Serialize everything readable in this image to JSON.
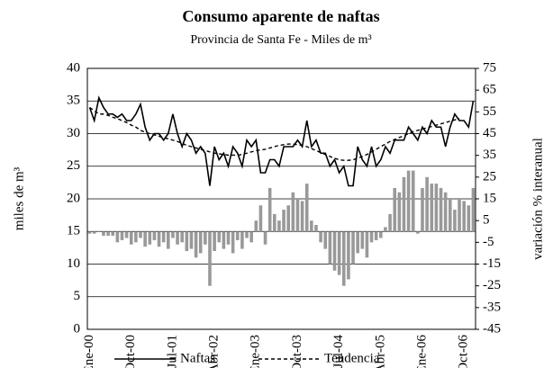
{
  "chart_data": {
    "type": "combo",
    "title": "Consumo aparente de naftas",
    "subtitle": "Provincia de Santa Fe - Miles de m³",
    "ylabel": "miles de m³",
    "y2label": "variación % interanual",
    "categories": [
      "Ene-00",
      null,
      null,
      null,
      null,
      null,
      null,
      null,
      null,
      "Oct-00",
      null,
      null,
      null,
      null,
      null,
      null,
      null,
      null,
      "Jul-01",
      null,
      null,
      null,
      null,
      null,
      null,
      null,
      null,
      "Abr-02",
      null,
      null,
      null,
      null,
      null,
      null,
      null,
      null,
      "Ene-03",
      null,
      null,
      null,
      null,
      null,
      null,
      null,
      null,
      "Oct-03",
      null,
      null,
      null,
      null,
      null,
      null,
      null,
      null,
      "Jul-04",
      null,
      null,
      null,
      null,
      null,
      null,
      null,
      null,
      "Abr-05",
      null,
      null,
      null,
      null,
      null,
      null,
      null,
      null,
      "Ene-06",
      null,
      null,
      null,
      null,
      null,
      null,
      null,
      null,
      "Oct-06",
      null,
      null
    ],
    "series": [
      {
        "type": "bar",
        "axis": "y2",
        "color": "#999999",
        "values": [
          -1,
          -1,
          0,
          -2,
          -2,
          -2,
          -5,
          -4,
          -3,
          -6,
          -5,
          -3,
          -7,
          -6,
          -4,
          -7,
          -5,
          -8,
          -3,
          -6,
          -5,
          -9,
          -8,
          -12,
          -10,
          -6,
          -25,
          -9,
          -5,
          -8,
          -6,
          -10,
          -4,
          -8,
          -3,
          -5,
          5,
          12,
          -6,
          20,
          8,
          5,
          10,
          12,
          18,
          15,
          14,
          22,
          5,
          3,
          -5,
          -8,
          -15,
          -18,
          -20,
          -25,
          -22,
          -15,
          -10,
          -8,
          -12,
          -5,
          -4,
          -3,
          2,
          8,
          20,
          18,
          25,
          28,
          28,
          -1,
          20,
          25,
          22,
          22,
          20,
          18,
          15,
          10,
          15,
          14,
          12,
          20
        ]
      },
      {
        "type": "line",
        "name": "Naftas",
        "color": "#000000",
        "dash": false,
        "values": [
          34,
          32,
          35.5,
          34,
          33,
          33,
          32.5,
          33,
          32,
          32,
          33,
          34.5,
          31,
          29,
          30,
          30,
          29,
          30,
          33,
          30,
          28,
          30,
          29,
          27,
          28,
          27,
          22,
          28,
          26,
          27,
          25,
          28,
          27,
          25,
          29,
          28,
          29,
          24,
          24,
          26,
          26,
          25,
          28,
          28,
          28,
          29,
          28,
          32,
          28,
          29,
          27,
          27,
          25,
          26,
          24,
          25,
          22,
          22,
          28,
          26,
          25,
          28,
          25,
          26,
          28,
          27,
          29,
          29,
          29,
          31,
          30,
          29,
          31,
          30,
          32,
          31,
          31,
          28,
          31,
          33,
          32,
          32,
          31,
          35
        ]
      },
      {
        "type": "line",
        "name": "Tendencia",
        "color": "#000000",
        "dash": true,
        "values": [
          34,
          33.5,
          33,
          33,
          32.8,
          32.5,
          32.3,
          32,
          31.7,
          31.3,
          31,
          30.5,
          30.2,
          30,
          29.8,
          29.6,
          29.4,
          29.2,
          29,
          28.8,
          28.5,
          28.2,
          28,
          27.8,
          27.6,
          27.4,
          27.2,
          27,
          26.9,
          26.8,
          26.7,
          26.7,
          26.7,
          26.8,
          27,
          27.2,
          27.4,
          27.5,
          27.6,
          27.8,
          28,
          28.2,
          28.3,
          28.4,
          28.4,
          28.3,
          28.2,
          28,
          27.7,
          27.4,
          27.1,
          26.8,
          26.5,
          26.2,
          26,
          25.9,
          25.9,
          26,
          26.2,
          26.5,
          26.8,
          27.2,
          27.6,
          28,
          28.4,
          28.8,
          29.1,
          29.4,
          29.7,
          30,
          30.3,
          30.5,
          30.7,
          30.9,
          31.1,
          31.3,
          31.5,
          31.7,
          31.9,
          32.1,
          32.3,
          null,
          null,
          null
        ]
      }
    ],
    "ylim": [
      0,
      40
    ],
    "yticks": [
      0,
      5,
      10,
      15,
      20,
      25,
      30,
      35,
      40
    ],
    "y2lim": [
      -45,
      75
    ],
    "y2ticks": [
      -45,
      -35,
      -25,
      -15,
      -5,
      5,
      15,
      25,
      35,
      45,
      55,
      65,
      75
    ],
    "grid": true
  }
}
